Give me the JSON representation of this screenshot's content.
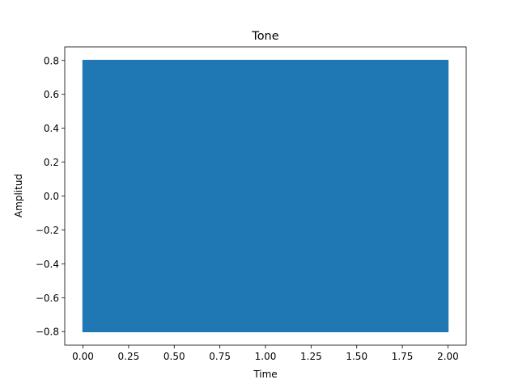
{
  "chart_data": {
    "type": "line",
    "title": "Tone",
    "xlabel": "Time",
    "ylabel": "Amplitud",
    "xlim": [
      -0.1,
      2.1
    ],
    "ylim": [
      -0.88,
      0.88
    ],
    "x_ticks": [
      0.0,
      0.25,
      0.5,
      0.75,
      1.0,
      1.25,
      1.5,
      1.75,
      2.0
    ],
    "x_tick_labels": [
      "0.00",
      "0.25",
      "0.50",
      "0.75",
      "1.00",
      "1.25",
      "1.50",
      "1.75",
      "2.00"
    ],
    "y_ticks": [
      -0.8,
      -0.6,
      -0.4,
      -0.2,
      0.0,
      0.2,
      0.4,
      0.6,
      0.8
    ],
    "y_tick_labels": [
      "−0.8",
      "−0.6",
      "−0.4",
      "−0.2",
      "0.0",
      "0.2",
      "0.4",
      "0.6",
      "0.8"
    ],
    "grid": false,
    "series": [
      {
        "color": "#1f77b4",
        "x_start": 0.0,
        "x_end": 2.0,
        "amplitude": 0.8,
        "note_fill": "dense oscillation filling the band"
      }
    ]
  }
}
